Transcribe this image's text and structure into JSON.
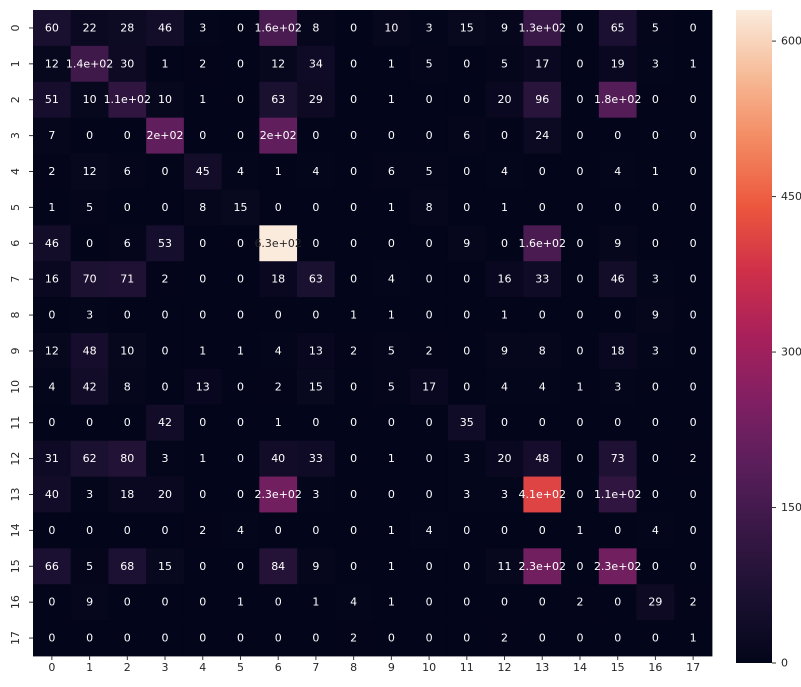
{
  "chart_data": {
    "type": "heatmap",
    "title": "",
    "xlabel": "",
    "ylabel": "",
    "x_categories": [
      "0",
      "1",
      "2",
      "3",
      "4",
      "5",
      "6",
      "7",
      "8",
      "9",
      "10",
      "11",
      "12",
      "13",
      "14",
      "15",
      "16",
      "17"
    ],
    "y_categories": [
      "0",
      "1",
      "2",
      "3",
      "4",
      "5",
      "6",
      "7",
      "8",
      "9",
      "10",
      "11",
      "12",
      "13",
      "14",
      "15",
      "16",
      "17"
    ],
    "values": [
      [
        60,
        22,
        28,
        46,
        3,
        0,
        160,
        8,
        0,
        10,
        3,
        15,
        9,
        130,
        0,
        65,
        5,
        0
      ],
      [
        12,
        140,
        30,
        1,
        2,
        0,
        12,
        34,
        0,
        1,
        5,
        0,
        5,
        17,
        0,
        19,
        3,
        1
      ],
      [
        51,
        10,
        110,
        10,
        1,
        0,
        63,
        29,
        0,
        1,
        0,
        0,
        20,
        96,
        0,
        180,
        0,
        0
      ],
      [
        7,
        0,
        0,
        200,
        0,
        0,
        200,
        0,
        0,
        0,
        0,
        6,
        0,
        24,
        0,
        0,
        0,
        0
      ],
      [
        2,
        12,
        6,
        0,
        45,
        4,
        1,
        4,
        0,
        6,
        5,
        0,
        4,
        0,
        0,
        4,
        1,
        0
      ],
      [
        1,
        5,
        0,
        0,
        8,
        15,
        0,
        0,
        0,
        1,
        8,
        0,
        1,
        0,
        0,
        0,
        0,
        0
      ],
      [
        46,
        0,
        6,
        53,
        0,
        0,
        630,
        0,
        0,
        0,
        0,
        9,
        0,
        160,
        0,
        9,
        0,
        0
      ],
      [
        16,
        70,
        71,
        2,
        0,
        0,
        18,
        63,
        0,
        4,
        0,
        0,
        16,
        33,
        0,
        46,
        3,
        0
      ],
      [
        0,
        3,
        0,
        0,
        0,
        0,
        0,
        0,
        1,
        1,
        0,
        0,
        1,
        0,
        0,
        0,
        9,
        0
      ],
      [
        12,
        48,
        10,
        0,
        1,
        1,
        4,
        13,
        2,
        5,
        2,
        0,
        9,
        8,
        0,
        18,
        3,
        0
      ],
      [
        4,
        42,
        8,
        0,
        13,
        0,
        2,
        15,
        0,
        5,
        17,
        0,
        4,
        4,
        1,
        3,
        0,
        0
      ],
      [
        0,
        0,
        0,
        42,
        0,
        0,
        1,
        0,
        0,
        0,
        0,
        35,
        0,
        0,
        0,
        0,
        0,
        0
      ],
      [
        31,
        62,
        80,
        3,
        1,
        0,
        40,
        33,
        0,
        1,
        0,
        3,
        20,
        48,
        0,
        73,
        0,
        2
      ],
      [
        40,
        3,
        18,
        20,
        0,
        0,
        230,
        3,
        0,
        0,
        0,
        3,
        3,
        410,
        0,
        110,
        0,
        0
      ],
      [
        0,
        0,
        0,
        0,
        2,
        4,
        0,
        0,
        0,
        1,
        4,
        0,
        0,
        0,
        1,
        0,
        4,
        0
      ],
      [
        66,
        5,
        68,
        15,
        0,
        0,
        84,
        9,
        0,
        1,
        0,
        0,
        11,
        230,
        0,
        230,
        0,
        0
      ],
      [
        0,
        9,
        0,
        0,
        0,
        1,
        0,
        1,
        4,
        1,
        0,
        0,
        0,
        0,
        2,
        0,
        29,
        2
      ],
      [
        0,
        0,
        0,
        0,
        0,
        0,
        0,
        0,
        2,
        0,
        0,
        0,
        2,
        0,
        0,
        0,
        0,
        1
      ]
    ],
    "labels": [
      [
        "60",
        "22",
        "28",
        "46",
        "3",
        "0",
        "1.6e+02",
        "8",
        "0",
        "10",
        "3",
        "15",
        "9",
        "1.3e+02",
        "0",
        "65",
        "5",
        "0"
      ],
      [
        "12",
        "1.4e+02",
        "30",
        "1",
        "2",
        "0",
        "12",
        "34",
        "0",
        "1",
        "5",
        "0",
        "5",
        "17",
        "0",
        "19",
        "3",
        "1"
      ],
      [
        "51",
        "10",
        "1.1e+02",
        "10",
        "1",
        "0",
        "63",
        "29",
        "0",
        "1",
        "0",
        "0",
        "20",
        "96",
        "0",
        "1.8e+02",
        "0",
        "0"
      ],
      [
        "7",
        "0",
        "0",
        "2e+02",
        "0",
        "0",
        "2e+02",
        "0",
        "0",
        "0",
        "0",
        "6",
        "0",
        "24",
        "0",
        "0",
        "0",
        "0"
      ],
      [
        "2",
        "12",
        "6",
        "0",
        "45",
        "4",
        "1",
        "4",
        "0",
        "6",
        "5",
        "0",
        "4",
        "0",
        "0",
        "4",
        "1",
        "0"
      ],
      [
        "1",
        "5",
        "0",
        "0",
        "8",
        "15",
        "0",
        "0",
        "0",
        "1",
        "8",
        "0",
        "1",
        "0",
        "0",
        "0",
        "0",
        "0"
      ],
      [
        "46",
        "0",
        "6",
        "53",
        "0",
        "0",
        "6.3e+02",
        "0",
        "0",
        "0",
        "0",
        "9",
        "0",
        "1.6e+02",
        "0",
        "9",
        "0",
        "0"
      ],
      [
        "16",
        "70",
        "71",
        "2",
        "0",
        "0",
        "18",
        "63",
        "0",
        "4",
        "0",
        "0",
        "16",
        "33",
        "0",
        "46",
        "3",
        "0"
      ],
      [
        "0",
        "3",
        "0",
        "0",
        "0",
        "0",
        "0",
        "0",
        "1",
        "1",
        "0",
        "0",
        "1",
        "0",
        "0",
        "0",
        "9",
        "0"
      ],
      [
        "12",
        "48",
        "10",
        "0",
        "1",
        "1",
        "4",
        "13",
        "2",
        "5",
        "2",
        "0",
        "9",
        "8",
        "0",
        "18",
        "3",
        "0"
      ],
      [
        "4",
        "42",
        "8",
        "0",
        "13",
        "0",
        "2",
        "15",
        "0",
        "5",
        "17",
        "0",
        "4",
        "4",
        "1",
        "3",
        "0",
        "0"
      ],
      [
        "0",
        "0",
        "0",
        "42",
        "0",
        "0",
        "1",
        "0",
        "0",
        "0",
        "0",
        "35",
        "0",
        "0",
        "0",
        "0",
        "0",
        "0"
      ],
      [
        "31",
        "62",
        "80",
        "3",
        "1",
        "0",
        "40",
        "33",
        "0",
        "1",
        "0",
        "3",
        "20",
        "48",
        "0",
        "73",
        "0",
        "2"
      ],
      [
        "40",
        "3",
        "18",
        "20",
        "0",
        "0",
        "2.3e+02",
        "3",
        "0",
        "0",
        "0",
        "3",
        "3",
        "4.1e+02",
        "0",
        "1.1e+02",
        "0",
        "0"
      ],
      [
        "0",
        "0",
        "0",
        "0",
        "2",
        "4",
        "0",
        "0",
        "0",
        "1",
        "4",
        "0",
        "0",
        "0",
        "1",
        "0",
        "4",
        "0"
      ],
      [
        "66",
        "5",
        "68",
        "15",
        "0",
        "0",
        "84",
        "9",
        "0",
        "1",
        "0",
        "0",
        "11",
        "2.3e+02",
        "0",
        "2.3e+02",
        "0",
        "0"
      ],
      [
        "0",
        "9",
        "0",
        "0",
        "0",
        "1",
        "0",
        "1",
        "4",
        "1",
        "0",
        "0",
        "0",
        "0",
        "2",
        "0",
        "29",
        "2"
      ],
      [
        "0",
        "0",
        "0",
        "0",
        "0",
        "0",
        "0",
        "0",
        "2",
        "0",
        "0",
        "0",
        "2",
        "0",
        "0",
        "0",
        "0",
        "1"
      ]
    ],
    "colormap": "rocket",
    "colorbar": {
      "range": [
        0,
        630
      ],
      "ticks": [
        0,
        150,
        300,
        450,
        600
      ],
      "tick_labels": [
        "0",
        "150",
        "300",
        "450",
        "600"
      ]
    },
    "grid": false,
    "legend": "colorbar-right"
  }
}
